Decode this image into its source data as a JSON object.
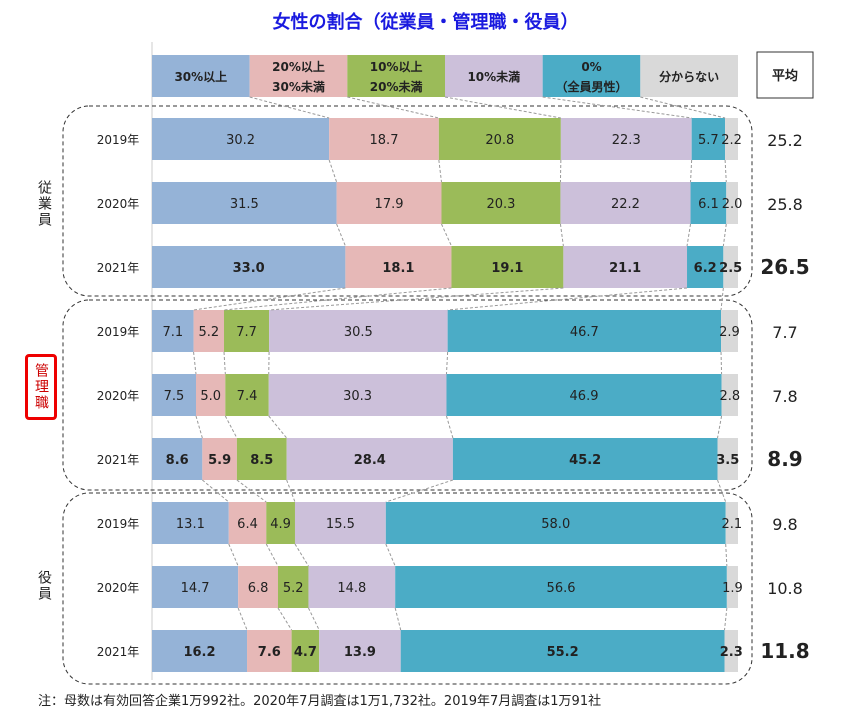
{
  "chart_data": {
    "type": "bar",
    "stacked": true,
    "orientation": "horizontal",
    "title": "女性の割合（従業員・管理職・役員）",
    "legend": [
      "30%以上",
      "20%以上\n30%未満",
      "10%以上\n20%未満",
      "10%未満",
      "0%\n（全員男性）",
      "分からない"
    ],
    "colors": [
      "#95b3d7",
      "#e6b8b7",
      "#9bbb59",
      "#ccc0da",
      "#4bacc6",
      "#d9d9d9"
    ],
    "average_label": "平均",
    "groups": [
      {
        "name": "従業員",
        "highlight": false,
        "rows": [
          {
            "year": "2019年",
            "values": [
              30.2,
              18.7,
              20.8,
              22.3,
              5.7,
              2.2
            ],
            "average": 25.2,
            "bold": false
          },
          {
            "year": "2020年",
            "values": [
              31.5,
              17.9,
              20.3,
              22.2,
              6.1,
              2.0
            ],
            "average": 25.8,
            "bold": false
          },
          {
            "year": "2021年",
            "values": [
              33.0,
              18.1,
              19.1,
              21.1,
              6.2,
              2.5
            ],
            "average": 26.5,
            "bold": true
          }
        ]
      },
      {
        "name": "管理職",
        "highlight": true,
        "rows": [
          {
            "year": "2019年",
            "values": [
              7.1,
              5.2,
              7.7,
              30.5,
              46.7,
              2.9
            ],
            "average": 7.7,
            "bold": false
          },
          {
            "year": "2020年",
            "values": [
              7.5,
              5.0,
              7.4,
              30.3,
              46.9,
              2.8
            ],
            "average": 7.8,
            "bold": false
          },
          {
            "year": "2021年",
            "values": [
              8.6,
              5.9,
              8.5,
              28.4,
              45.2,
              3.5
            ],
            "average": 8.9,
            "bold": true
          }
        ]
      },
      {
        "name": "役員",
        "highlight": false,
        "rows": [
          {
            "year": "2019年",
            "values": [
              13.1,
              6.4,
              4.9,
              15.5,
              58.0,
              2.1
            ],
            "average": 9.8,
            "bold": false
          },
          {
            "year": "2020年",
            "values": [
              14.7,
              6.8,
              5.2,
              14.8,
              56.6,
              1.9
            ],
            "average": 10.8,
            "bold": false
          },
          {
            "year": "2021年",
            "values": [
              16.2,
              7.6,
              4.7,
              13.9,
              55.2,
              2.3
            ],
            "average": 11.8,
            "bold": true
          }
        ]
      }
    ],
    "footnote": "注：母数は有効回答企業1万992社。2020年7月調査は1万1,732社。2019年7月調査は1万91社"
  }
}
